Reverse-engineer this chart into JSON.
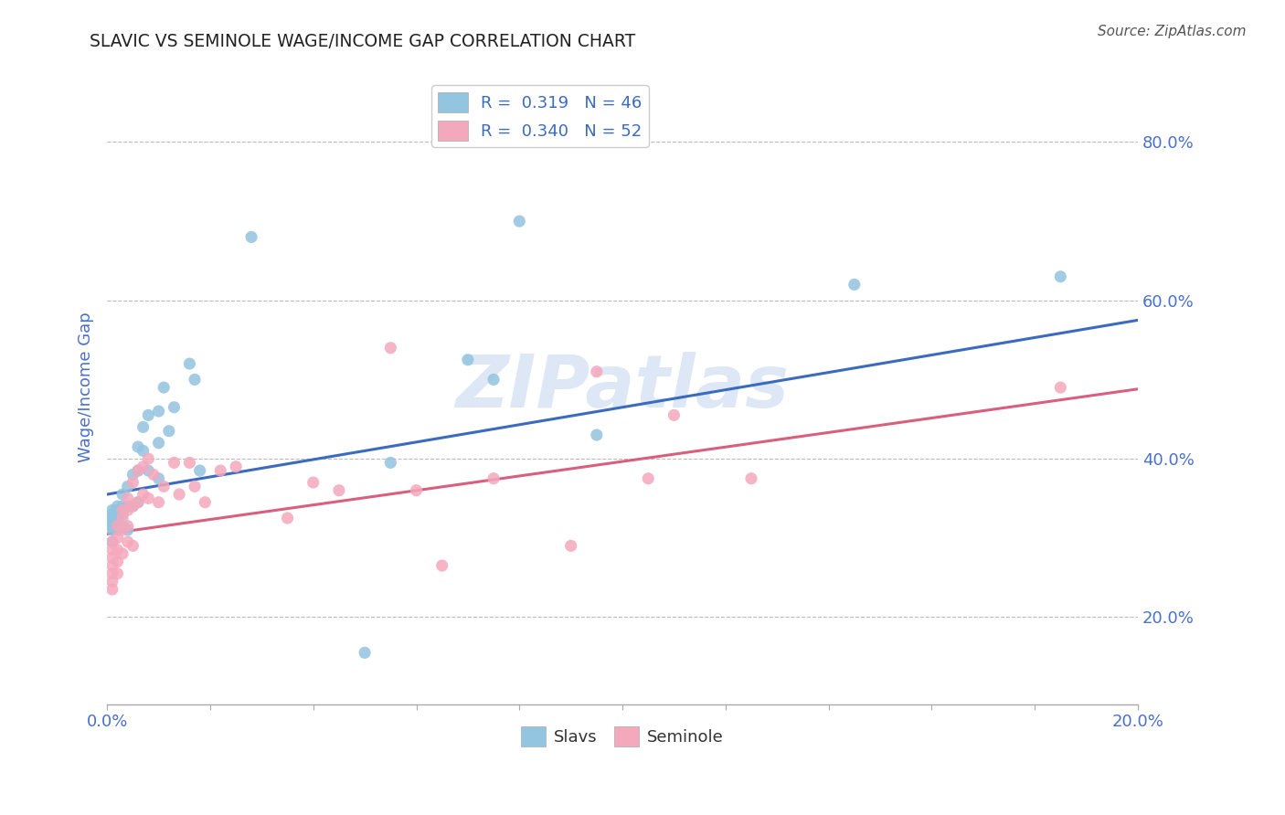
{
  "title": "SLAVIC VS SEMINOLE WAGE/INCOME GAP CORRELATION CHART",
  "source": "Source: ZipAtlas.com",
  "ylabel": "Wage/Income Gap",
  "ytick_labels": [
    "20.0%",
    "40.0%",
    "60.0%",
    "80.0%"
  ],
  "ytick_values": [
    0.2,
    0.4,
    0.6,
    0.8
  ],
  "xlim": [
    0.0,
    0.2
  ],
  "ylim": [
    0.09,
    0.89
  ],
  "legend_r_slavs": "R =  0.319",
  "legend_n_slavs": "N = 46",
  "legend_r_seminole": "R =  0.340",
  "legend_n_seminole": "N = 52",
  "slavs_color": "#93c4e0",
  "seminole_color": "#f4a8bc",
  "slavs_line_color": "#3a6bbf",
  "seminole_line_color": "#d95f7f",
  "title_color": "#222222",
  "axis_label_color": "#4a70cc",
  "watermark_color": "#c8d8f0",
  "background_color": "#ffffff",
  "slavs_line_x0": 0.0,
  "slavs_line_y0": 0.355,
  "slavs_line_x1": 0.2,
  "slavs_line_y1": 0.575,
  "seminole_line_x0": 0.0,
  "seminole_line_y0": 0.305,
  "seminole_line_x1": 0.2,
  "seminole_line_y1": 0.488,
  "slavs_x": [
    0.001,
    0.001,
    0.001,
    0.001,
    0.001,
    0.001,
    0.001,
    0.002,
    0.002,
    0.002,
    0.002,
    0.002,
    0.003,
    0.003,
    0.003,
    0.003,
    0.004,
    0.004,
    0.004,
    0.005,
    0.005,
    0.006,
    0.006,
    0.006,
    0.007,
    0.007,
    0.008,
    0.008,
    0.01,
    0.01,
    0.01,
    0.011,
    0.012,
    0.013,
    0.016,
    0.017,
    0.018,
    0.028,
    0.05,
    0.055,
    0.07,
    0.075,
    0.08,
    0.095,
    0.145,
    0.185
  ],
  "slavs_y": [
    0.335,
    0.33,
    0.325,
    0.32,
    0.315,
    0.31,
    0.295,
    0.34,
    0.335,
    0.33,
    0.325,
    0.31,
    0.355,
    0.34,
    0.33,
    0.315,
    0.365,
    0.34,
    0.31,
    0.38,
    0.34,
    0.415,
    0.385,
    0.345,
    0.44,
    0.41,
    0.455,
    0.385,
    0.46,
    0.42,
    0.375,
    0.49,
    0.435,
    0.465,
    0.52,
    0.5,
    0.385,
    0.68,
    0.155,
    0.395,
    0.525,
    0.5,
    0.7,
    0.43,
    0.62,
    0.63
  ],
  "seminole_x": [
    0.001,
    0.001,
    0.001,
    0.001,
    0.001,
    0.001,
    0.001,
    0.002,
    0.002,
    0.002,
    0.002,
    0.002,
    0.003,
    0.003,
    0.003,
    0.003,
    0.004,
    0.004,
    0.004,
    0.004,
    0.005,
    0.005,
    0.005,
    0.006,
    0.006,
    0.007,
    0.007,
    0.008,
    0.008,
    0.009,
    0.01,
    0.011,
    0.013,
    0.014,
    0.016,
    0.017,
    0.019,
    0.022,
    0.025,
    0.035,
    0.04,
    0.045,
    0.055,
    0.06,
    0.065,
    0.075,
    0.09,
    0.095,
    0.105,
    0.11,
    0.125,
    0.185
  ],
  "seminole_y": [
    0.295,
    0.285,
    0.275,
    0.265,
    0.255,
    0.245,
    0.235,
    0.315,
    0.3,
    0.285,
    0.27,
    0.255,
    0.335,
    0.325,
    0.31,
    0.28,
    0.35,
    0.335,
    0.315,
    0.295,
    0.37,
    0.34,
    0.29,
    0.385,
    0.345,
    0.39,
    0.355,
    0.4,
    0.35,
    0.38,
    0.345,
    0.365,
    0.395,
    0.355,
    0.395,
    0.365,
    0.345,
    0.385,
    0.39,
    0.325,
    0.37,
    0.36,
    0.54,
    0.36,
    0.265,
    0.375,
    0.29,
    0.51,
    0.375,
    0.455,
    0.375,
    0.49
  ]
}
